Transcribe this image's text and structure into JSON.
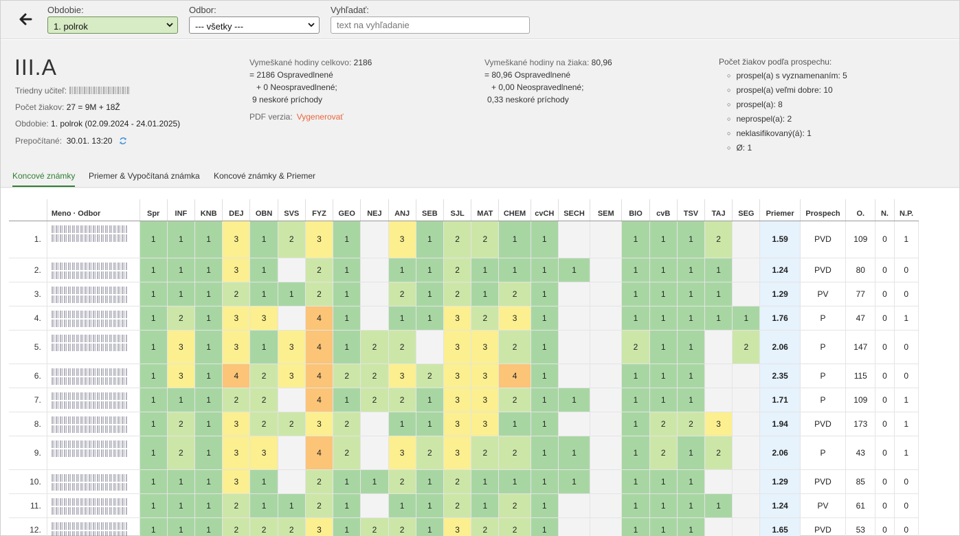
{
  "filters": {
    "period_label": "Obdobie:",
    "period_value": "1. polrok",
    "dept_label": "Odbor:",
    "dept_value": "--- všetky ---",
    "search_label": "Vyhľadať:",
    "search_placeholder": "text na vyhľadanie"
  },
  "class_info": {
    "title": "III.A",
    "teacher_label": "Triedny učiteľ:",
    "students_label": "Počet žiakov:",
    "students_value": "27 = 9M + 18Ž",
    "period_label": "Obdobie:",
    "period_value": "1. polrok (02.09.2024 - 24.01.2025)",
    "recalc_label": "Prepočítané:",
    "recalc_value": "30.01. 13:20"
  },
  "absence_total": {
    "label": "Vymeškané hodiny celkovo:",
    "value": "2186",
    "line1": "= 2186 Ospravedlnené",
    "line2": "+ 0 Neospravedlnené;",
    "line3": "9 neskoré príchody"
  },
  "absence_per_student": {
    "label": "Vymeškané hodiny na žiaka:",
    "value": "80,96",
    "line1": "= 80,96 Ospravedlnené",
    "line2": "+ 0,00 Neospravedlnené;",
    "line3": "0,33 neskoré príchody"
  },
  "pdf": {
    "label": "PDF verzia:",
    "link": "Vygenerovať"
  },
  "results": {
    "title": "Počet žiakov podľa prospechu:",
    "items": [
      "prospel(a) s vyznamenaním: 5",
      "prospel(a) veľmi dobre: 10",
      "prospel(a): 8",
      "neprospel(a): 2",
      "neklasifikovaný(á): 1",
      "Ø: 1"
    ]
  },
  "tabs": [
    "Koncové známky",
    "Priemer & Vypočítaná známka",
    "Koncové známky & Priemer"
  ],
  "table": {
    "name_header": "Meno · Odbor",
    "subjects": [
      "Spr",
      "INF",
      "KNB",
      "DEJ",
      "OBN",
      "SVS",
      "FYZ",
      "GEO",
      "NEJ",
      "ANJ",
      "SEB",
      "SJL",
      "MAT",
      "CHEM",
      "cvCH",
      "SECH",
      "SEM",
      "BIO",
      "cvB",
      "TSV",
      "TAJ",
      "SEG"
    ],
    "extra_headers": [
      "Priemer",
      "Prospech",
      "O.",
      "N.",
      "N.P."
    ],
    "rows": [
      {
        "no": "1.",
        "h": 54,
        "grades": [
          "1",
          "1",
          "1",
          "3",
          "1",
          "2",
          "3",
          "1",
          "",
          "3",
          "1",
          "2",
          "2",
          "1",
          "1",
          "",
          "",
          "1",
          "1",
          "1",
          "2",
          ""
        ],
        "avg": "1.59",
        "prospech": "PVD",
        "o": "109",
        "n": "0",
        "np": "1"
      },
      {
        "no": "2.",
        "h": 35,
        "grades": [
          "1",
          "1",
          "1",
          "3",
          "1",
          "",
          "2",
          "1",
          "",
          "1",
          "1",
          "2",
          "1",
          "1",
          "1",
          "1",
          "",
          "1",
          "1",
          "1",
          "1",
          ""
        ],
        "avg": "1.24",
        "prospech": "PVD",
        "o": "80",
        "n": "0",
        "np": "0"
      },
      {
        "no": "3.",
        "h": 35,
        "grades": [
          "1",
          "1",
          "1",
          "2",
          "1",
          "1",
          "2",
          "1",
          "",
          "2",
          "1",
          "2",
          "1",
          "2",
          "1",
          "",
          "",
          "1",
          "1",
          "1",
          "1",
          ""
        ],
        "avg": "1.29",
        "prospech": "PV",
        "o": "77",
        "n": "0",
        "np": "0"
      },
      {
        "no": "4.",
        "h": 35,
        "grades": [
          "1",
          "2",
          "1",
          "3",
          "3",
          "",
          "4",
          "1",
          "",
          "1",
          "1",
          "3",
          "2",
          "3",
          "1",
          "",
          "",
          "1",
          "1",
          "1",
          "1",
          "1"
        ],
        "avg": "1.76",
        "prospech": "P",
        "o": "47",
        "n": "0",
        "np": "1"
      },
      {
        "no": "5.",
        "h": 49,
        "grades": [
          "1",
          "3",
          "1",
          "3",
          "1",
          "3",
          "4",
          "1",
          "2",
          "2",
          "",
          "3",
          "3",
          "2",
          "1",
          "",
          "",
          "2",
          "1",
          "1",
          "",
          "2"
        ],
        "avg": "2.06",
        "prospech": "P",
        "o": "147",
        "n": "0",
        "np": "0"
      },
      {
        "no": "6.",
        "h": 35,
        "grades": [
          "1",
          "3",
          "1",
          "4",
          "2",
          "3",
          "4",
          "2",
          "2",
          "3",
          "2",
          "3",
          "3",
          "4",
          "1",
          "",
          "",
          "1",
          "1",
          "1",
          "",
          ""
        ],
        "avg": "2.35",
        "prospech": "P",
        "o": "115",
        "n": "0",
        "np": "0"
      },
      {
        "no": "7.",
        "h": 35,
        "grades": [
          "1",
          "1",
          "1",
          "2",
          "2",
          "",
          "4",
          "1",
          "2",
          "2",
          "1",
          "3",
          "3",
          "2",
          "1",
          "1",
          "",
          "1",
          "1",
          "1",
          "",
          ""
        ],
        "avg": "1.71",
        "prospech": "P",
        "o": "109",
        "n": "0",
        "np": "1"
      },
      {
        "no": "8.",
        "h": 35,
        "grades": [
          "1",
          "2",
          "1",
          "3",
          "2",
          "2",
          "3",
          "2",
          "",
          "1",
          "1",
          "3",
          "3",
          "1",
          "1",
          "",
          "",
          "1",
          "2",
          "2",
          "3",
          ""
        ],
        "avg": "1.94",
        "prospech": "PVD",
        "o": "173",
        "n": "0",
        "np": "1"
      },
      {
        "no": "9.",
        "h": 49,
        "grades": [
          "1",
          "2",
          "1",
          "3",
          "3",
          "",
          "4",
          "2",
          "",
          "3",
          "2",
          "3",
          "2",
          "2",
          "1",
          "1",
          "",
          "1",
          "2",
          "1",
          "2",
          ""
        ],
        "avg": "2.06",
        "prospech": "P",
        "o": "43",
        "n": "0",
        "np": "1"
      },
      {
        "no": "10.",
        "h": 35,
        "grades": [
          "1",
          "1",
          "1",
          "3",
          "1",
          "",
          "2",
          "1",
          "1",
          "2",
          "1",
          "2",
          "1",
          "1",
          "1",
          "1",
          "",
          "1",
          "1",
          "1",
          "",
          ""
        ],
        "avg": "1.29",
        "prospech": "PVD",
        "o": "85",
        "n": "0",
        "np": "0"
      },
      {
        "no": "11.",
        "h": 35,
        "grades": [
          "1",
          "1",
          "1",
          "2",
          "1",
          "1",
          "2",
          "1",
          "",
          "1",
          "1",
          "2",
          "1",
          "2",
          "1",
          "",
          "",
          "1",
          "1",
          "1",
          "1",
          ""
        ],
        "avg": "1.24",
        "prospech": "PV",
        "o": "61",
        "n": "0",
        "np": "0"
      },
      {
        "no": "12.",
        "h": 35,
        "grades": [
          "1",
          "1",
          "1",
          "2",
          "2",
          "2",
          "3",
          "1",
          "2",
          "2",
          "1",
          "3",
          "2",
          "2",
          "1",
          "",
          "",
          "1",
          "1",
          "1",
          "",
          ""
        ],
        "avg": "1.65",
        "prospech": "PVD",
        "o": "53",
        "n": "0",
        "np": "0"
      }
    ]
  },
  "colors": {
    "grade1": "#a8d6a3",
    "grade2": "#cce6a8",
    "grade3": "#fbef8f",
    "grade4": "#fbc477",
    "empty": "#f3f3f3",
    "avg_bg": "#e6f2fc",
    "accent": "#2e7d32",
    "link": "#e8663d"
  }
}
